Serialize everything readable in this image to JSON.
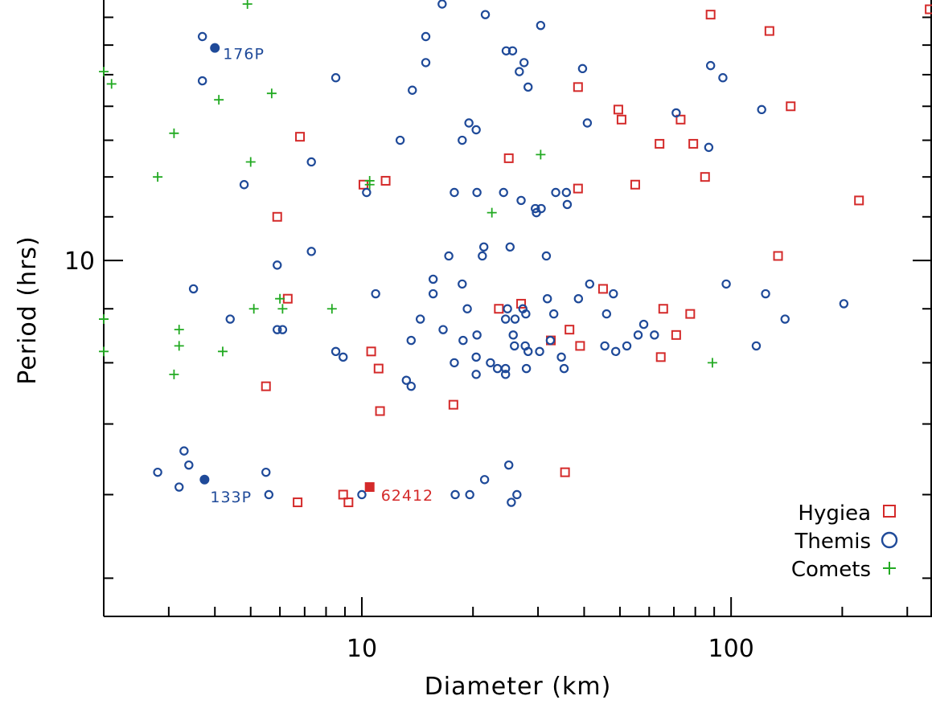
{
  "chart_data": {
    "type": "scatter",
    "xlabel": "Diameter (km)",
    "ylabel": "Period (hrs)",
    "xscale": "log",
    "yscale": "log",
    "xlim": [
      2.0,
      350
    ],
    "ylim": [
      4.6,
      17.5
    ],
    "xticks": [
      10,
      100
    ],
    "xtick_labels": [
      "10",
      "100"
    ],
    "yticks": [
      10
    ],
    "ytick_labels": [
      "10"
    ],
    "legend_position": "bottom-right",
    "colors": {
      "hygiea": "#d42a2a",
      "themis": "#1f4a99",
      "comets": "#22aa22"
    },
    "series": [
      {
        "name": "Hygiea",
        "marker": "open-square",
        "points": [
          [
            6.8,
            13.1
          ],
          [
            5.9,
            11.0
          ],
          [
            6.3,
            9.2
          ],
          [
            5.5,
            7.6
          ],
          [
            6.7,
            5.9
          ],
          [
            8.9,
            6.0
          ],
          [
            9.2,
            5.9
          ],
          [
            10.1,
            11.8
          ],
          [
            11.6,
            11.9
          ],
          [
            10.6,
            8.2
          ],
          [
            11.1,
            7.9
          ],
          [
            11.2,
            7.2
          ],
          [
            17.7,
            7.3
          ],
          [
            23.5,
            9.0
          ],
          [
            25.0,
            12.5
          ],
          [
            27.0,
            9.1
          ],
          [
            32.5,
            8.4
          ],
          [
            35.5,
            6.3
          ],
          [
            36.5,
            8.6
          ],
          [
            38.5,
            14.6
          ],
          [
            38.5,
            11.7
          ],
          [
            39.0,
            8.3
          ],
          [
            45.0,
            9.4
          ],
          [
            49.5,
            13.9
          ],
          [
            50.5,
            13.6
          ],
          [
            55.0,
            11.8
          ],
          [
            64.0,
            12.9
          ],
          [
            65.5,
            9.0
          ],
          [
            64.5,
            8.1
          ],
          [
            71.0,
            8.5
          ],
          [
            73.0,
            13.6
          ],
          [
            77.5,
            8.9
          ],
          [
            79.0,
            12.9
          ],
          [
            85.0,
            12.0
          ],
          [
            88.0,
            17.1
          ],
          [
            127.0,
            16.5
          ],
          [
            134.0,
            10.1
          ],
          [
            145.0,
            14.0
          ],
          [
            222.0,
            11.4
          ],
          [
            345.0,
            17.3
          ]
        ]
      },
      {
        "name": "Themis",
        "marker": "open-circle",
        "points": [
          [
            3.7,
            16.3
          ],
          [
            3.7,
            14.8
          ],
          [
            3.5,
            9.4
          ],
          [
            3.3,
            6.6
          ],
          [
            3.4,
            6.4
          ],
          [
            2.8,
            6.3
          ],
          [
            3.2,
            6.1
          ],
          [
            4.4,
            8.8
          ],
          [
            4.8,
            11.8
          ],
          [
            5.5,
            6.3
          ],
          [
            5.6,
            6.0
          ],
          [
            5.9,
            9.9
          ],
          [
            5.9,
            8.6
          ],
          [
            6.1,
            8.6
          ],
          [
            7.3,
            12.4
          ],
          [
            7.3,
            10.2
          ],
          [
            8.5,
            14.9
          ],
          [
            8.5,
            8.2
          ],
          [
            8.9,
            8.1
          ],
          [
            10.0,
            6.0
          ],
          [
            10.3,
            11.6
          ],
          [
            10.9,
            9.3
          ],
          [
            12.7,
            13.0
          ],
          [
            13.2,
            7.7
          ],
          [
            13.6,
            7.6
          ],
          [
            13.6,
            8.4
          ],
          [
            13.7,
            14.5
          ],
          [
            14.4,
            8.8
          ],
          [
            14.9,
            16.3
          ],
          [
            14.9,
            15.4
          ],
          [
            15.6,
            9.6
          ],
          [
            15.6,
            9.3
          ],
          [
            16.5,
            17.5
          ],
          [
            16.6,
            8.6
          ],
          [
            17.2,
            10.1
          ],
          [
            17.8,
            11.6
          ],
          [
            17.8,
            8.0
          ],
          [
            17.9,
            6.0
          ],
          [
            18.7,
            13.0
          ],
          [
            18.7,
            9.5
          ],
          [
            18.8,
            8.4
          ],
          [
            19.3,
            9.0
          ],
          [
            19.5,
            13.5
          ],
          [
            19.6,
            6.0
          ],
          [
            20.4,
            8.1
          ],
          [
            20.4,
            7.8
          ],
          [
            20.4,
            13.3
          ],
          [
            20.5,
            11.6
          ],
          [
            20.5,
            8.5
          ],
          [
            21.2,
            10.1
          ],
          [
            21.4,
            10.3
          ],
          [
            21.5,
            6.2
          ],
          [
            21.6,
            17.1
          ],
          [
            22.3,
            8.0
          ],
          [
            23.3,
            7.9
          ],
          [
            24.2,
            11.6
          ],
          [
            24.5,
            7.8
          ],
          [
            24.5,
            7.9
          ],
          [
            24.5,
            8.8
          ],
          [
            24.6,
            15.8
          ],
          [
            24.8,
            9.0
          ],
          [
            25.0,
            6.4
          ],
          [
            25.2,
            10.3
          ],
          [
            25.4,
            5.9
          ],
          [
            25.6,
            15.8
          ],
          [
            25.7,
            8.5
          ],
          [
            25.9,
            8.3
          ],
          [
            26.0,
            8.8
          ],
          [
            26.3,
            6.0
          ],
          [
            26.7,
            15.1
          ],
          [
            27.0,
            11.4
          ],
          [
            27.3,
            9.0
          ],
          [
            27.5,
            15.4
          ],
          [
            27.7,
            8.3
          ],
          [
            27.8,
            8.9
          ],
          [
            27.9,
            7.9
          ],
          [
            28.2,
            14.6
          ],
          [
            28.2,
            8.2
          ],
          [
            29.5,
            11.2
          ],
          [
            29.7,
            11.1
          ],
          [
            30.3,
            8.2
          ],
          [
            30.5,
            16.7
          ],
          [
            30.6,
            11.2
          ],
          [
            31.6,
            10.1
          ],
          [
            31.8,
            9.2
          ],
          [
            32.4,
            8.4
          ],
          [
            33.1,
            8.9
          ],
          [
            33.5,
            11.6
          ],
          [
            34.7,
            8.1
          ],
          [
            35.3,
            7.9
          ],
          [
            35.8,
            11.6
          ],
          [
            36.0,
            11.3
          ],
          [
            38.6,
            9.2
          ],
          [
            39.6,
            15.2
          ],
          [
            40.8,
            13.5
          ],
          [
            41.4,
            9.5
          ],
          [
            45.5,
            8.3
          ],
          [
            46.0,
            8.9
          ],
          [
            48.0,
            9.3
          ],
          [
            48.7,
            8.2
          ],
          [
            52.2,
            8.3
          ],
          [
            56.0,
            8.5
          ],
          [
            58.0,
            8.7
          ],
          [
            62.0,
            8.5
          ],
          [
            71.0,
            13.8
          ],
          [
            87.0,
            12.8
          ],
          [
            88.0,
            15.3
          ],
          [
            95.0,
            14.9
          ],
          [
            97.0,
            9.5
          ],
          [
            117.0,
            8.3
          ],
          [
            121.0,
            13.9
          ],
          [
            124.0,
            9.3
          ],
          [
            140.0,
            8.8
          ],
          [
            202.0,
            9.1
          ]
        ]
      },
      {
        "name": "Comets",
        "marker": "plus",
        "points": [
          [
            2.0,
            15.1
          ],
          [
            2.1,
            14.7
          ],
          [
            2.0,
            8.8
          ],
          [
            2.0,
            8.2
          ],
          [
            2.8,
            12.0
          ],
          [
            3.1,
            13.2
          ],
          [
            3.1,
            7.8
          ],
          [
            3.2,
            8.6
          ],
          [
            3.2,
            8.3
          ],
          [
            4.1,
            14.2
          ],
          [
            4.2,
            8.2
          ],
          [
            4.9,
            17.5
          ],
          [
            5.1,
            17.9
          ],
          [
            5.0,
            12.4
          ],
          [
            5.1,
            9.0
          ],
          [
            5.7,
            14.4
          ],
          [
            6.0,
            9.2
          ],
          [
            6.1,
            9.0
          ],
          [
            8.3,
            9.0
          ],
          [
            10.5,
            11.8
          ],
          [
            10.5,
            11.9
          ],
          [
            22.5,
            11.1
          ],
          [
            30.5,
            12.6
          ],
          [
            89.0,
            8.0
          ]
        ]
      }
    ],
    "annotations": [
      {
        "text": "176P",
        "x": 4.0,
        "y": 15.9,
        "series": "Themis",
        "marker": "filled-circle"
      },
      {
        "text": "133P",
        "x": 3.75,
        "y": 6.2,
        "series": "Themis",
        "marker": "filled-circle"
      },
      {
        "text": "62412",
        "x": 10.5,
        "y": 6.1,
        "series": "Hygiea",
        "marker": "filled-square"
      }
    ]
  }
}
